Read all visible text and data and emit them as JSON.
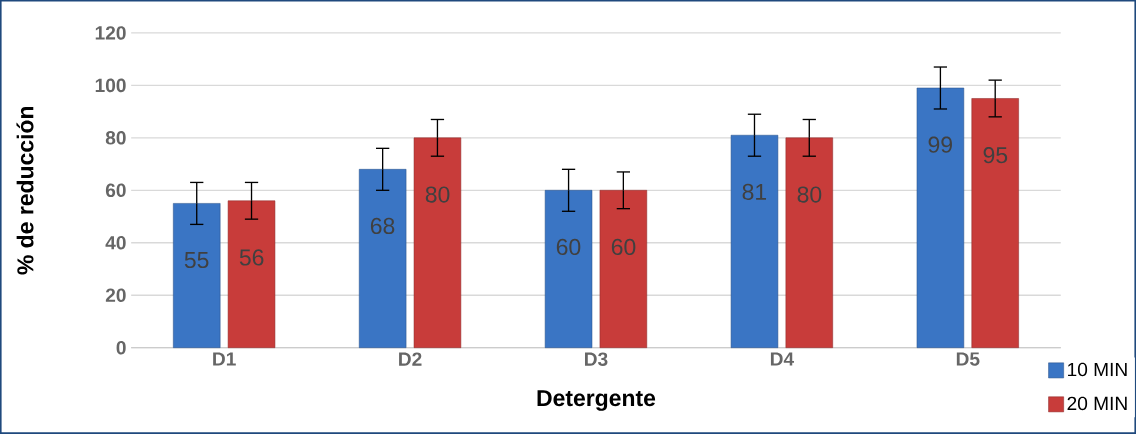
{
  "chart_data": {
    "type": "bar",
    "xlabel": "Detergente",
    "ylabel": "% de reducción",
    "categories": [
      "D1",
      "D2",
      "D3",
      "D4",
      "D5"
    ],
    "series": [
      {
        "name": "10 MIN",
        "color": "#3a75c4",
        "values": [
          55,
          68,
          60,
          81,
          99
        ],
        "errors": [
          8,
          8,
          8,
          8,
          8
        ]
      },
      {
        "name": "20 MIN",
        "color": "#c83c3a",
        "values": [
          56,
          80,
          60,
          80,
          95
        ],
        "errors": [
          7,
          7,
          7,
          7,
          7
        ]
      }
    ],
    "ylim": [
      0,
      120
    ],
    "yticks": [
      0,
      20,
      40,
      60,
      80,
      100,
      120
    ],
    "grid": "y",
    "legend": "bottom right",
    "data_labels": true
  }
}
